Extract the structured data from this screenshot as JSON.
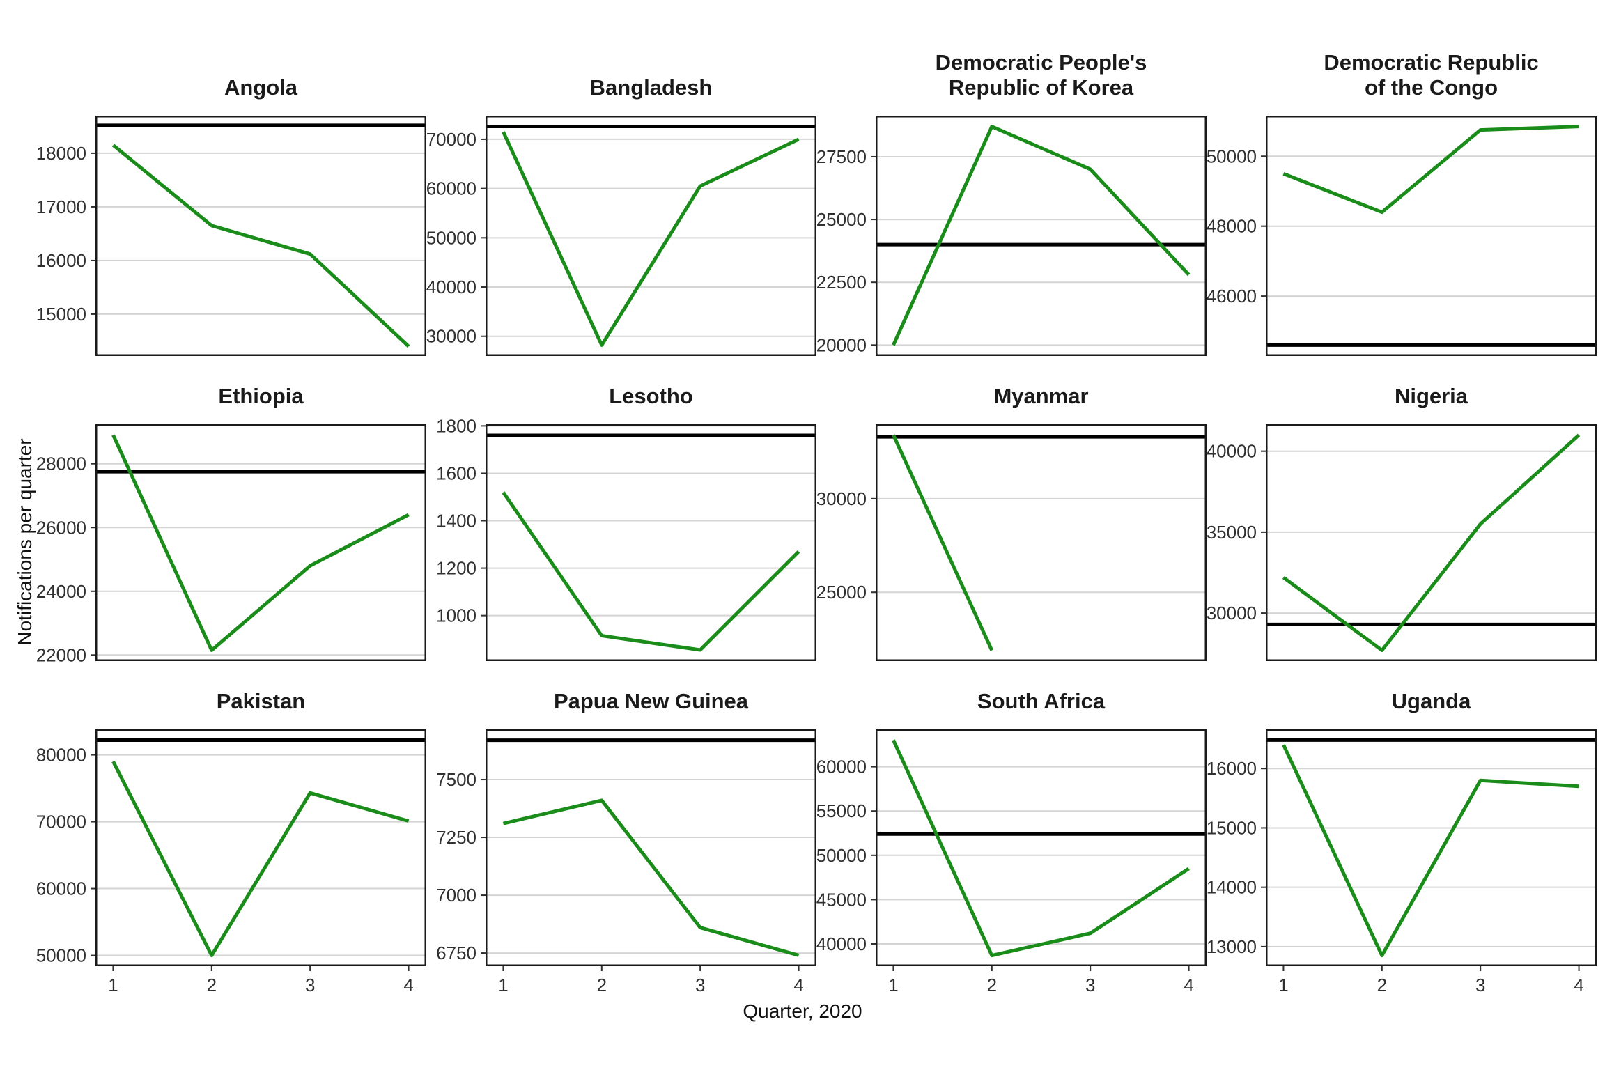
{
  "figure": {
    "ylabel": "Notifications per quarter",
    "xlabel": "Quarter, 2020",
    "x_axis": {
      "tick_labels": [
        "1",
        "2",
        "3",
        "4"
      ]
    },
    "colors": {
      "line": "#1A8C1A",
      "reference": "#000000",
      "grid": "#d4d4d4",
      "border": "#1a1a1a",
      "tick_text": "#303030",
      "title_text": "#1a1a1a",
      "panel_bg": "#ffffff"
    }
  },
  "chart_data": [
    {
      "type": "line",
      "title": "Angola",
      "title_lines": [
        "Angola"
      ],
      "x": [
        1,
        2,
        3,
        4
      ],
      "values": [
        18150,
        16650,
        16120,
        14400
      ],
      "reference_line": 18520,
      "yticks": [
        15000,
        16000,
        17000,
        18000
      ],
      "ylim": [
        14220,
        18700
      ],
      "xlim": [
        0.82,
        4.18
      ],
      "grid": "horizontal-major",
      "legend": "none"
    },
    {
      "type": "line",
      "title": "Bangladesh",
      "title_lines": [
        "Bangladesh"
      ],
      "x": [
        1,
        2,
        3,
        4
      ],
      "values": [
        71500,
        28200,
        60500,
        70000
      ],
      "reference_line": 72600,
      "yticks": [
        30000,
        40000,
        50000,
        60000,
        70000
      ],
      "ylim": [
        26000,
        74800
      ],
      "xlim": [
        0.82,
        4.18
      ],
      "grid": "horizontal-major",
      "legend": "none"
    },
    {
      "type": "line",
      "title": "Democratic People's Republic of Korea",
      "title_lines": [
        "Democratic People's",
        "Republic of Korea"
      ],
      "x": [
        1,
        2,
        3,
        4
      ],
      "values": [
        20000,
        28700,
        27000,
        22800
      ],
      "reference_line": 24000,
      "yticks": [
        20000,
        22500,
        25000,
        27500
      ],
      "ylim": [
        19565,
        29135
      ],
      "xlim": [
        0.82,
        4.18
      ],
      "grid": "horizontal-major",
      "legend": "none"
    },
    {
      "type": "line",
      "title": "Democratic Republic of the Congo",
      "title_lines": [
        "Democratic Republic",
        "of the Congo"
      ],
      "x": [
        1,
        2,
        3,
        4
      ],
      "values": [
        49500,
        48400,
        50750,
        50850
      ],
      "reference_line": 44600,
      "yticks": [
        46000,
        48000,
        50000
      ],
      "ylim": [
        44290,
        51160
      ],
      "xlim": [
        0.82,
        4.18
      ],
      "grid": "horizontal-major",
      "legend": "none"
    },
    {
      "type": "line",
      "title": "Ethiopia",
      "title_lines": [
        "Ethiopia"
      ],
      "x": [
        1,
        2,
        3,
        4
      ],
      "values": [
        28900,
        22150,
        24800,
        26400
      ],
      "reference_line": 27750,
      "yticks": [
        22000,
        24000,
        26000,
        28000
      ],
      "ylim": [
        21810,
        29240
      ],
      "xlim": [
        0.82,
        4.18
      ],
      "grid": "horizontal-major",
      "legend": "none"
    },
    {
      "type": "line",
      "title": "Lesotho",
      "title_lines": [
        "Lesotho"
      ],
      "x": [
        1,
        2,
        3,
        4
      ],
      "values": [
        1520,
        915,
        855,
        1270
      ],
      "reference_line": 1760,
      "yticks": [
        1000,
        1200,
        1400,
        1600,
        1800
      ],
      "ylim": [
        808,
        1807
      ],
      "xlim": [
        0.82,
        4.18
      ],
      "grid": "horizontal-major",
      "legend": "none"
    },
    {
      "type": "line",
      "title": "Myanmar",
      "title_lines": [
        "Myanmar"
      ],
      "x": [
        1,
        2
      ],
      "values": [
        33400,
        21900
      ],
      "reference_line": 33300,
      "yticks": [
        25000,
        30000
      ],
      "ylim": [
        21325,
        33975
      ],
      "xlim": [
        0.82,
        4.18
      ],
      "grid": "horizontal-major",
      "legend": "none"
    },
    {
      "type": "line",
      "title": "Nigeria",
      "title_lines": [
        "Nigeria"
      ],
      "x": [
        1,
        2,
        3,
        4
      ],
      "values": [
        32200,
        27700,
        35500,
        41000
      ],
      "reference_line": 29300,
      "yticks": [
        30000,
        35000,
        40000
      ],
      "ylim": [
        27035,
        41665
      ],
      "xlim": [
        0.82,
        4.18
      ],
      "grid": "horizontal-major",
      "legend": "none"
    },
    {
      "type": "line",
      "title": "Pakistan",
      "title_lines": [
        "Pakistan"
      ],
      "x": [
        1,
        2,
        3,
        4
      ],
      "values": [
        79000,
        50000,
        74300,
        70100
      ],
      "reference_line": 82200,
      "yticks": [
        50000,
        60000,
        70000,
        80000
      ],
      "ylim": [
        48390,
        83810
      ],
      "xlim": [
        0.82,
        4.18
      ],
      "grid": "horizontal-major",
      "legend": "none"
    },
    {
      "type": "line",
      "title": "Papua New Guinea",
      "title_lines": [
        "Papua New Guinea"
      ],
      "x": [
        1,
        2,
        3,
        4
      ],
      "values": [
        7310,
        7410,
        6860,
        6740
      ],
      "reference_line": 7670,
      "yticks": [
        6750,
        7000,
        7250,
        7500
      ],
      "ylim": [
        6693,
        7717
      ],
      "xlim": [
        0.82,
        4.18
      ],
      "grid": "horizontal-major",
      "legend": "none"
    },
    {
      "type": "line",
      "title": "South Africa",
      "title_lines": [
        "South Africa"
      ],
      "x": [
        1,
        2,
        3,
        4
      ],
      "values": [
        63000,
        38700,
        41200,
        48500
      ],
      "reference_line": 52400,
      "yticks": [
        40000,
        45000,
        50000,
        55000,
        60000
      ],
      "ylim": [
        37485,
        64215
      ],
      "xlim": [
        0.82,
        4.18
      ],
      "grid": "horizontal-major",
      "legend": "none"
    },
    {
      "type": "line",
      "title": "Uganda",
      "title_lines": [
        "Uganda"
      ],
      "x": [
        1,
        2,
        3,
        4
      ],
      "values": [
        16400,
        12850,
        15800,
        15700
      ],
      "reference_line": 16480,
      "yticks": [
        13000,
        14000,
        15000,
        16000
      ],
      "ylim": [
        12670,
        16660
      ],
      "xlim": [
        0.82,
        4.18
      ],
      "grid": "horizontal-major",
      "legend": "none"
    }
  ]
}
